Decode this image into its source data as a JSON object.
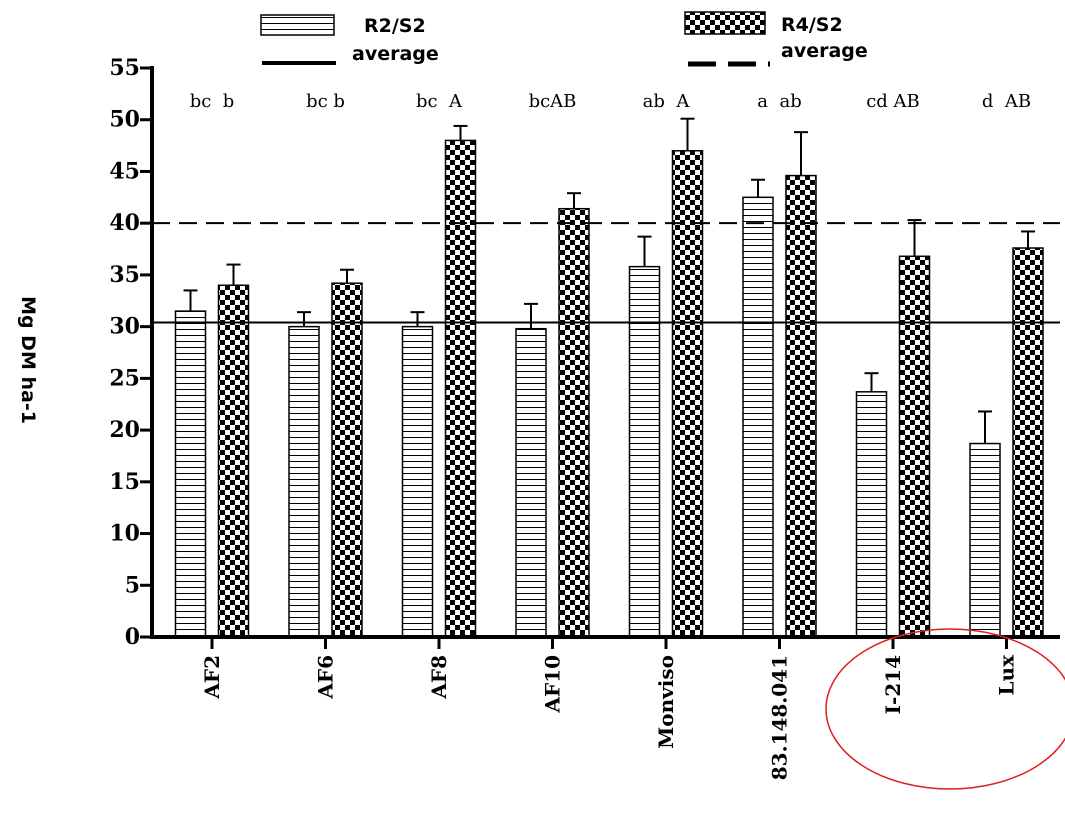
{
  "chart_data": {
    "type": "bar",
    "ylabel": "Mg DM ha-1",
    "ylim": [
      0,
      55
    ],
    "yticks": [
      0,
      5,
      10,
      15,
      20,
      25,
      30,
      35,
      40,
      45,
      50,
      55
    ],
    "categories": [
      "AF2",
      "AF6",
      "AF8",
      "AF10",
      "Monviso",
      "83.148.041",
      "I-214",
      "Lux"
    ],
    "series": [
      {
        "name": "R2/S2",
        "pattern": "horizontal-lines",
        "values": [
          31.5,
          30.0,
          30.0,
          29.8,
          35.8,
          42.5,
          23.7,
          18.7
        ],
        "errors": [
          2.0,
          1.4,
          1.4,
          2.4,
          2.9,
          1.7,
          1.8,
          3.1
        ]
      },
      {
        "name": "R4/S2",
        "pattern": "checkerboard",
        "values": [
          34.0,
          34.2,
          48.0,
          41.4,
          47.0,
          44.6,
          36.8,
          37.6
        ],
        "errors": [
          2.0,
          1.3,
          1.4,
          1.5,
          3.1,
          4.2,
          3.5,
          1.6
        ]
      }
    ],
    "reference_lines": [
      {
        "label": "average",
        "series": "R2/S2",
        "value": 30.4,
        "style": "solid"
      },
      {
        "label": "average",
        "series": "R4/S2",
        "value": 40.0,
        "style": "dashed"
      }
    ],
    "significance_letters": [
      "bc  b",
      "bc b",
      "bc  A",
      "bcAB",
      "ab  A",
      "a  ab",
      "cd AB",
      "d  AB"
    ],
    "legend": [
      {
        "label": "R2/S2",
        "pattern": "horizontal-lines"
      },
      {
        "label": "R4/S2",
        "pattern": "checkerboard"
      },
      {
        "label": "average",
        "style": "solid"
      },
      {
        "label": "average",
        "style": "dashed"
      }
    ],
    "legend_placement": "top",
    "annotation": {
      "type": "ellipse",
      "color": "#e02020",
      "around": [
        "I-214",
        "Lux"
      ]
    },
    "grid": false
  }
}
